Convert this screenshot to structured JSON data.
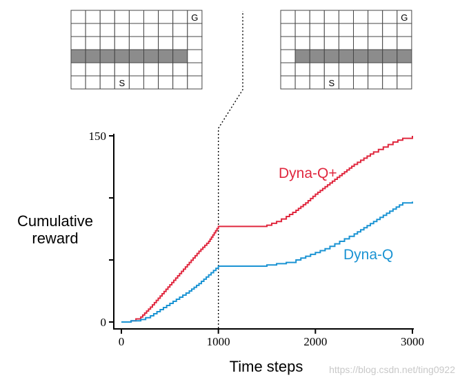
{
  "chart_data": {
    "type": "line",
    "xlabel": "Time steps",
    "ylabel_lines": [
      "Cumulative",
      "reward"
    ],
    "xlim": [
      0,
      3000
    ],
    "ylim": [
      0,
      150
    ],
    "x_ticks": [
      0,
      1000,
      2000,
      3000
    ],
    "x_tick_labels": [
      "0",
      "1000",
      "2000",
      "3000"
    ],
    "y_ticks": [
      0,
      50,
      100,
      150
    ],
    "y_tick_labels": [
      "0",
      "",
      "",
      "150"
    ],
    "environment_change_at": 1000,
    "series": [
      {
        "name": "Dyna-Q+",
        "color": "#e0273e",
        "x": [
          0,
          100,
          200,
          300,
          400,
          500,
          600,
          700,
          800,
          900,
          1000,
          1100,
          1200,
          1300,
          1400,
          1500,
          1600,
          1700,
          1800,
          1900,
          2000,
          2100,
          2200,
          2300,
          2400,
          2500,
          2600,
          2700,
          2800,
          2900,
          3000
        ],
        "y": [
          0,
          1,
          4,
          12,
          21,
          30,
          39,
          48,
          57,
          65,
          77,
          77,
          77,
          77,
          77,
          78,
          81,
          85,
          90,
          96,
          103,
          109,
          115,
          121,
          127,
          132,
          137,
          141,
          145,
          148,
          150
        ]
      },
      {
        "name": "Dyna-Q",
        "color": "#1a93d3",
        "x": [
          0,
          100,
          200,
          300,
          400,
          500,
          600,
          700,
          800,
          900,
          1000,
          1100,
          1200,
          1300,
          1400,
          1500,
          1600,
          1700,
          1800,
          1900,
          2000,
          2100,
          2200,
          2300,
          2400,
          2500,
          2600,
          2700,
          2800,
          2900,
          3000
        ],
        "y": [
          0,
          1,
          2,
          5,
          10,
          15,
          20,
          25,
          31,
          38,
          45,
          45,
          45,
          45,
          45,
          46,
          47,
          48,
          50,
          53,
          56,
          59,
          63,
          67,
          71,
          76,
          81,
          86,
          91,
          96,
          97
        ]
      }
    ],
    "mazes": [
      {
        "name": "before",
        "goal_label": "G",
        "start_label": "S"
      },
      {
        "name": "after",
        "goal_label": "G",
        "start_label": "S"
      }
    ]
  },
  "watermark": "https://blog.csdn.net/ting0922"
}
